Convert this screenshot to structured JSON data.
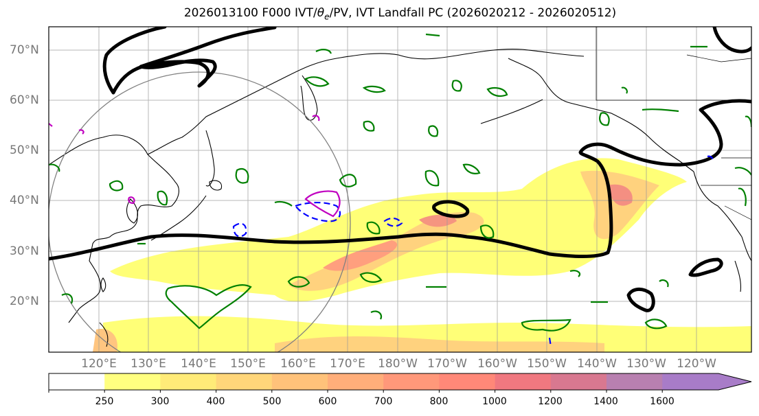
{
  "title_prefix": "2026013100 F000 IVT/",
  "title_theta": "θ",
  "title_sub": "e",
  "title_suffix": "/PV, IVT Landfall PC (2026020212 - 2026020512)",
  "lat_labels": [
    "70°N",
    "60°N",
    "50°N",
    "40°N",
    "30°N",
    "20°N"
  ],
  "lon_labels": [
    "120°E",
    "130°E",
    "140°E",
    "150°E",
    "160°E",
    "170°E",
    "180°W",
    "170°W",
    "160°W",
    "150°W",
    "140°W",
    "130°W",
    "120°W"
  ],
  "colorbar": {
    "labels": [
      "250",
      "300",
      "400",
      "500",
      "600",
      "700",
      "800",
      "1000",
      "1200",
      "1400",
      "1600"
    ],
    "colors": [
      "#ffffff",
      "#ffff80",
      "#ffeb78",
      "#ffd67a",
      "#ffc27a",
      "#ffae7a",
      "#ff987a",
      "#ff8878",
      "#f07880",
      "#d87890",
      "#b880b0",
      "#a87cc8"
    ]
  },
  "colors": {
    "ivt_low": "#ffff70",
    "ivt_mid": "#ffcf78",
    "ivt_high": "#ff9a78",
    "ivt_max": "#f07880",
    "pv_contour": "#000000",
    "theta_contour": "#008000",
    "blue_contour": "#0000ff",
    "magenta_contour": "#c000c0",
    "grid": "#999999",
    "circle": "#808080"
  }
}
